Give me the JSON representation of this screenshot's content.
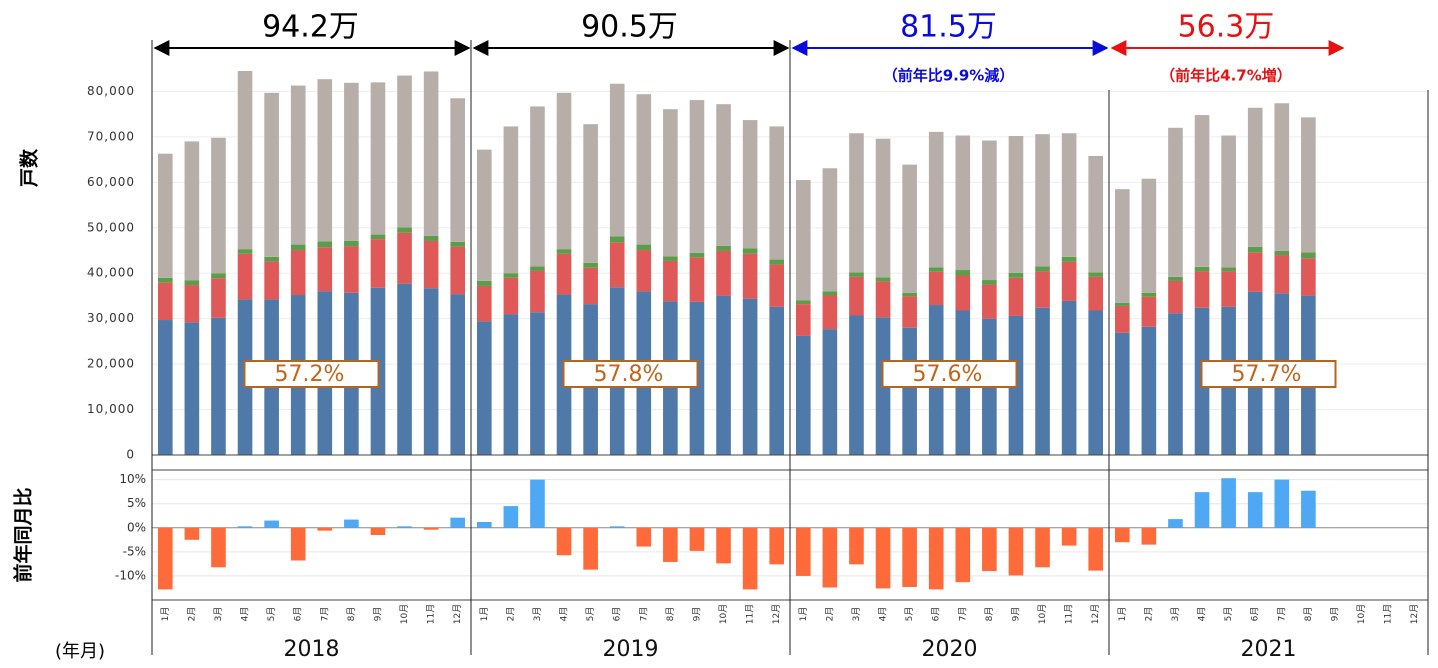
{
  "chart_data": [
    {
      "type": "stacked_bar",
      "y_label": "戸数",
      "x_label": "(年月)",
      "categories": [
        "1月",
        "2月",
        "3月",
        "4月",
        "5月",
        "6月",
        "7月",
        "8月",
        "9月",
        "10月",
        "11月",
        "12月",
        "1月",
        "2月",
        "3月",
        "4月",
        "5月",
        "6月",
        "7月",
        "8月",
        "9月",
        "10月",
        "11月",
        "12月",
        "1月",
        "2月",
        "3月",
        "4月",
        "5月",
        "6月",
        "7月",
        "8月",
        "9月",
        "10月",
        "11月",
        "12月",
        "1月",
        "2月",
        "3月",
        "4月",
        "5月",
        "6月",
        "7月",
        "8月",
        "9月",
        "10月",
        "11月",
        "12月"
      ],
      "groups": [
        {
          "label": "2018",
          "total": "94.2万",
          "share": "57.2%",
          "color": "#000000"
        },
        {
          "label": "2019",
          "total": "90.5万",
          "share": "57.8%",
          "color": "#000000"
        },
        {
          "label": "2020",
          "total": "81.5万",
          "note": "（前年比9.9%減）",
          "share": "57.6%",
          "color": "#0a0adc"
        },
        {
          "label": "2021",
          "total": "56.3万",
          "note": "（前年比4.7%増）",
          "share": "57.7%",
          "color": "#e81010"
        }
      ],
      "series": [
        {
          "color": "#4f79a8",
          "values": [
            29700,
            29200,
            30200,
            34200,
            34200,
            35200,
            36000,
            35700,
            36800,
            37700,
            36700,
            35400,
            29400,
            31000,
            31400,
            35300,
            33200,
            36900,
            36000,
            33800,
            33700,
            35000,
            34400,
            32600,
            26200,
            27700,
            30700,
            30300,
            28000,
            33000,
            31800,
            30000,
            30600,
            32400,
            33900,
            31800,
            26900,
            28200,
            31200,
            32400,
            32600,
            35900,
            35600,
            35000,
            null,
            null,
            null,
            null
          ]
        },
        {
          "color": "#e05959",
          "values": [
            8200,
            8200,
            8700,
            10100,
            8400,
            9900,
            9700,
            10200,
            10700,
            11200,
            10400,
            10400,
            7800,
            8000,
            9100,
            9000,
            8000,
            9900,
            9100,
            8900,
            9800,
            9900,
            9900,
            9300,
            7000,
            7400,
            8500,
            7900,
            6900,
            7300,
            7700,
            7500,
            8400,
            8000,
            8600,
            7400,
            5900,
            6600,
            7100,
            8000,
            7800,
            8700,
            8400,
            8300,
            null,
            null,
            null,
            null
          ]
        },
        {
          "color": "#5a9e4b",
          "values": [
            1100,
            1000,
            1100,
            1000,
            1000,
            1200,
            1300,
            1200,
            1000,
            1200,
            1100,
            1100,
            1100,
            1000,
            1000,
            1000,
            1100,
            1300,
            1200,
            1000,
            1000,
            1100,
            1200,
            1100,
            800,
            900,
            1000,
            900,
            800,
            1000,
            1200,
            1000,
            1100,
            1100,
            1100,
            1000,
            700,
            900,
            900,
            1000,
            900,
            1200,
            900,
            1300,
            null,
            null,
            null,
            null
          ]
        },
        {
          "color": "#b8aea9",
          "values": [
            27300,
            30600,
            29800,
            39200,
            36100,
            35000,
            35700,
            34800,
            33500,
            33400,
            36200,
            31600,
            28900,
            32300,
            35200,
            34400,
            30500,
            33600,
            33100,
            32400,
            33600,
            31200,
            28200,
            29300,
            26500,
            27100,
            30600,
            30500,
            28200,
            29800,
            29600,
            30700,
            30100,
            29100,
            27200,
            25600,
            25000,
            25100,
            32800,
            33400,
            29000,
            30600,
            32500,
            29700,
            null,
            null,
            null,
            null
          ]
        }
      ],
      "ylim": [
        0,
        90000
      ],
      "yticks": [
        0,
        {
          "value": 10000,
          "label": "10,000"
        },
        {
          "value": 20000,
          "label": "20,000"
        },
        {
          "value": 30000,
          "label": "30,000"
        },
        {
          "value": 40000,
          "label": "40,000"
        },
        {
          "value": 50000,
          "label": "50,000"
        },
        {
          "value": 60000,
          "label": "60,000"
        },
        {
          "value": 70000,
          "label": "70,000"
        },
        {
          "value": 80000,
          "label": "80,000"
        }
      ],
      "grid": true
    },
    {
      "type": "diverging_bar",
      "y_label": "前年同月比",
      "positive_color": "#4ea8f4",
      "negative_color": "#ff6a3a",
      "values": [
        -12.8,
        -2.5,
        -8.2,
        0.3,
        1.5,
        -6.8,
        -0.6,
        1.7,
        -1.5,
        0.3,
        -0.4,
        2.1,
        1.2,
        4.5,
        10.0,
        -5.7,
        -8.7,
        0.3,
        -3.9,
        -7.1,
        -4.8,
        -7.4,
        -12.8,
        -7.6,
        -10.0,
        -12.4,
        -7.6,
        -12.6,
        -12.3,
        -12.8,
        -11.3,
        -9.0,
        -9.9,
        -8.2,
        -3.7,
        -8.9,
        -3.0,
        -3.5,
        1.8,
        7.4,
        10.3,
        7.4,
        10.0,
        7.7,
        null,
        null,
        null,
        null
      ],
      "ylim": [
        -15,
        12
      ],
      "yticks": [
        {
          "value": -10,
          "label": "-10%"
        },
        {
          "value": -5,
          "label": "-5%"
        },
        {
          "value": 0,
          "label": "0%"
        },
        {
          "value": 5,
          "label": "5%"
        },
        {
          "value": 10,
          "label": "10%"
        }
      ],
      "grid": true
    }
  ]
}
